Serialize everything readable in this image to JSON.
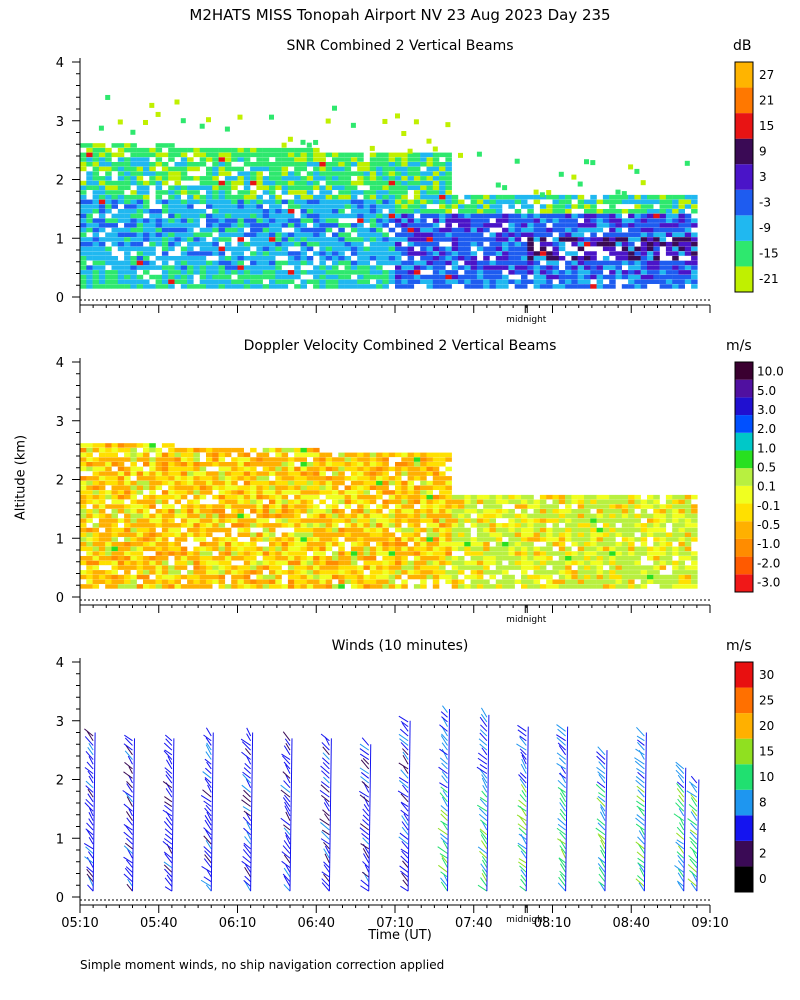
{
  "page_title": "M2HATS MISS Tonopah Airport NV  23 Aug 2023 Day 235",
  "footnote": "Simple moment winds, no ship navigation correction applied",
  "colors": {
    "snr": [
      "#c0f000",
      "#2ee86e",
      "#20b8f0",
      "#1e5cf0",
      "#4a14c8",
      "#3a0a55",
      "#e81414",
      "#ff7800",
      "#ffb400"
    ],
    "velocity": [
      "#f01818",
      "#ff5a00",
      "#ff8c00",
      "#ffb000",
      "#ffe000",
      "#f0ff20",
      "#b8f040",
      "#28e020",
      "#00c8c8",
      "#0050ff",
      "#2010d0",
      "#5010a0",
      "#3a0030"
    ],
    "winds": [
      "#000000",
      "#3a0a55",
      "#1414f0",
      "#1e96f0",
      "#20e070",
      "#90e020",
      "#ffb000",
      "#ff7000",
      "#e81010"
    ]
  },
  "chart_data": [
    {
      "type": "heatmap",
      "title": "SNR Combined 2 Vertical Beams",
      "xlabel": "",
      "ylabel": "Altitude (km)",
      "ylim": [
        0,
        4
      ],
      "y_ticks": [
        0,
        1,
        2,
        3,
        4
      ],
      "x_range_minutes": [
        0,
        240
      ],
      "midnight_marker": "midnight",
      "colorbar_unit": "dB",
      "colorbar_labels": [
        "-21",
        "-15",
        "-9",
        "-3",
        "3",
        "9",
        "15",
        "21",
        "27"
      ],
      "description_values": {
        "top_height_km_early": 2.6,
        "top_height_km_late": 1.6
      }
    },
    {
      "type": "heatmap",
      "title": "Doppler Velocity Combined 2 Vertical Beams",
      "xlabel": "",
      "ylabel": "Altitude (km)",
      "ylim": [
        0,
        4
      ],
      "y_ticks": [
        0,
        1,
        2,
        3,
        4
      ],
      "midnight_marker": "midnight",
      "colorbar_unit": "m/s",
      "colorbar_labels": [
        "-3.0",
        "-2.0",
        "-1.0",
        "-0.5",
        "-0.1",
        "0.1",
        "0.5",
        "1.0",
        "2.0",
        "3.0",
        "5.0",
        "10.0"
      ]
    },
    {
      "type": "scatter",
      "title": "Winds (10 minutes)",
      "xlabel": "Time (UT)",
      "ylabel": "Altitude (km)",
      "ylim": [
        0,
        4
      ],
      "y_ticks": [
        0,
        1,
        2,
        3,
        4
      ],
      "x_ticks": [
        "05:10",
        "05:40",
        "06:10",
        "06:40",
        "07:10",
        "07:40",
        "08:10",
        "08:40",
        "09:10"
      ],
      "midnight_marker": "midnight",
      "colorbar_unit": "m/s",
      "colorbar_labels": [
        "0",
        "2",
        "4",
        "8",
        "10",
        "15",
        "20",
        "25",
        "30"
      ],
      "profile_times_minutes": [
        5,
        20,
        35,
        50,
        65,
        80,
        95,
        110,
        125,
        140,
        155,
        170,
        185,
        200,
        215,
        230,
        235
      ],
      "profile_tops_km": [
        2.8,
        2.7,
        2.7,
        2.8,
        2.8,
        2.7,
        2.7,
        2.6,
        3.0,
        3.2,
        3.1,
        2.9,
        2.9,
        2.5,
        2.8,
        2.2,
        2.0
      ]
    }
  ],
  "axis_label_altitude": "Altitude (km)"
}
